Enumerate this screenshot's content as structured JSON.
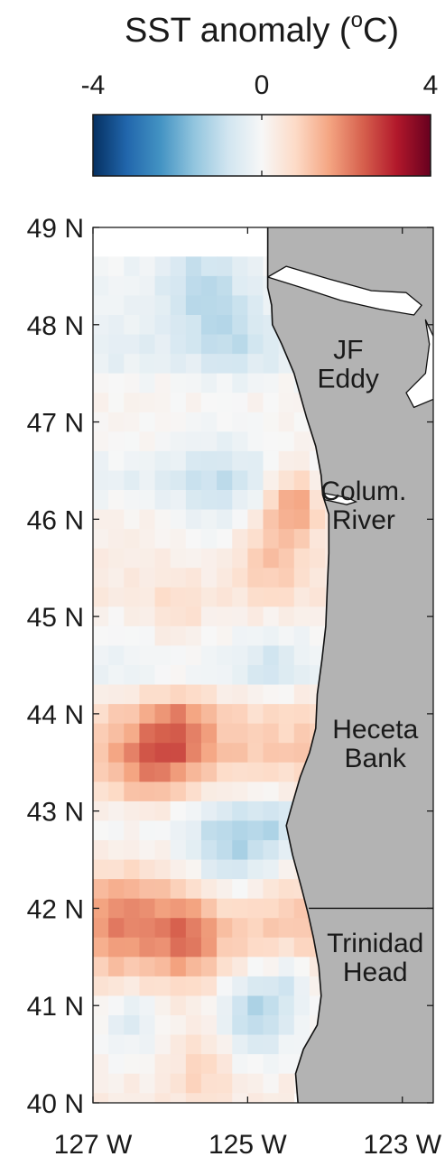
{
  "chart_data": {
    "type": "heatmap",
    "colorbar": {
      "title": "SST anomaly (",
      "title_unit_sup": "o",
      "title_unit_end": "C)",
      "min": -4,
      "max": 4,
      "ticks": [
        "-4",
        "0",
        "4"
      ],
      "colormap": [
        "#053061",
        "#2166ac",
        "#4393c3",
        "#92c5de",
        "#d1e5f0",
        "#f7f7f7",
        "#fddbc7",
        "#f4a582",
        "#d6604d",
        "#b2182b",
        "#67001f"
      ]
    },
    "x_axis": {
      "range": [
        -127,
        -122.6
      ],
      "ticks": [
        -127,
        -125,
        -123
      ],
      "tick_labels": [
        "127 W",
        "125 W",
        "123 W"
      ]
    },
    "y_axis": {
      "range": [
        40,
        49
      ],
      "ticks": [
        40,
        41,
        42,
        43,
        44,
        45,
        46,
        47,
        48,
        49
      ],
      "tick_labels": [
        "40 N",
        "41 N",
        "42 N",
        "43 N",
        "44 N",
        "45 N",
        "46 N",
        "47 N",
        "48 N",
        "49 N"
      ]
    },
    "grid": {
      "lon_start": -127,
      "lat_top": 48.7,
      "cell_lon": 0.2,
      "cell_lat": 0.2,
      "zonal_modes": [
        {
          "lat": 48.5,
          "v": -0.1
        },
        {
          "lat": 48.0,
          "v": -0.25
        },
        {
          "lat": 47.7,
          "v": -0.45
        },
        {
          "lat": 47.3,
          "v": 0.15
        },
        {
          "lat": 46.8,
          "v": 0.05
        },
        {
          "lat": 46.4,
          "v": -0.3
        },
        {
          "lat": 46.0,
          "v": 0.2
        },
        {
          "lat": 45.6,
          "v": 0.3
        },
        {
          "lat": 45.2,
          "v": 0.35
        },
        {
          "lat": 44.7,
          "v": -0.15
        },
        {
          "lat": 44.4,
          "v": -0.25
        },
        {
          "lat": 44.0,
          "v": 0.8
        },
        {
          "lat": 43.6,
          "v": 1.1
        },
        {
          "lat": 43.2,
          "v": 0.6
        },
        {
          "lat": 42.9,
          "v": -0.1
        },
        {
          "lat": 42.5,
          "v": 0.2
        },
        {
          "lat": 42.1,
          "v": 1.0
        },
        {
          "lat": 41.7,
          "v": 1.2
        },
        {
          "lat": 41.3,
          "v": 0.7
        },
        {
          "lat": 40.9,
          "v": 0.1
        },
        {
          "lat": 40.5,
          "v": 0.0
        },
        {
          "lat": 40.1,
          "v": 0.3
        }
      ],
      "anomaly_features": [
        {
          "lon": -124.4,
          "lat": 46.2,
          "r": 0.35,
          "v": 1.6
        },
        {
          "lon": -124.7,
          "lat": 45.6,
          "r": 0.45,
          "v": 0.9
        },
        {
          "lon": -125.6,
          "lat": 48.4,
          "r": 0.5,
          "v": -0.9
        },
        {
          "lon": -125.2,
          "lat": 47.9,
          "r": 0.45,
          "v": -0.6
        },
        {
          "lon": -125.4,
          "lat": 46.3,
          "r": 0.6,
          "v": -0.7
        },
        {
          "lon": -125.9,
          "lat": 43.8,
          "r": 0.45,
          "v": 1.3
        },
        {
          "lon": -126.3,
          "lat": 43.5,
          "r": 0.4,
          "v": 1.0
        },
        {
          "lon": -125.2,
          "lat": 42.6,
          "r": 0.55,
          "v": -1.3
        },
        {
          "lon": -124.6,
          "lat": 42.9,
          "r": 0.35,
          "v": -0.7
        },
        {
          "lon": -125.8,
          "lat": 41.7,
          "r": 0.4,
          "v": 1.2
        },
        {
          "lon": -126.6,
          "lat": 41.9,
          "r": 0.5,
          "v": 0.9
        },
        {
          "lon": -124.9,
          "lat": 41.0,
          "r": 0.45,
          "v": -1.4
        },
        {
          "lon": -124.4,
          "lat": 41.3,
          "r": 0.3,
          "v": -0.9
        },
        {
          "lon": -126.5,
          "lat": 40.9,
          "r": 0.3,
          "v": -0.7
        },
        {
          "lon": -125.6,
          "lat": 40.4,
          "r": 0.4,
          "v": 0.8
        },
        {
          "lon": -124.7,
          "lat": 44.5,
          "r": 0.3,
          "v": -0.6
        },
        {
          "lon": -125.9,
          "lat": 45.0,
          "r": 0.35,
          "v": 0.5
        }
      ]
    },
    "land_color": "#b3b3b3",
    "coastline": [
      [
        -124.74,
        48.38
      ],
      [
        -124.69,
        48.2
      ],
      [
        -124.68,
        48.0
      ],
      [
        -124.56,
        47.8
      ],
      [
        -124.4,
        47.5
      ],
      [
        -124.24,
        47.05
      ],
      [
        -124.12,
        46.75
      ],
      [
        -124.05,
        46.45
      ],
      [
        -124.03,
        46.25
      ],
      [
        -123.95,
        46.05
      ],
      [
        -123.95,
        45.65
      ],
      [
        -123.97,
        45.3
      ],
      [
        -123.99,
        44.9
      ],
      [
        -124.04,
        44.55
      ],
      [
        -124.1,
        44.2
      ],
      [
        -124.12,
        43.85
      ],
      [
        -124.2,
        43.6
      ],
      [
        -124.32,
        43.35
      ],
      [
        -124.43,
        43.05
      ],
      [
        -124.5,
        42.85
      ],
      [
        -124.42,
        42.55
      ],
      [
        -124.3,
        42.2
      ],
      [
        -124.22,
        41.95
      ],
      [
        -124.15,
        41.7
      ],
      [
        -124.08,
        41.4
      ],
      [
        -124.05,
        41.1
      ],
      [
        -124.1,
        40.8
      ],
      [
        -124.28,
        40.55
      ],
      [
        -124.38,
        40.3
      ],
      [
        -124.35,
        40.0
      ]
    ],
    "strait_mask": [
      [
        -124.74,
        48.49
      ],
      [
        -124.3,
        48.38
      ],
      [
        -123.8,
        48.25
      ],
      [
        -123.3,
        48.16
      ],
      [
        -122.85,
        48.1
      ],
      [
        -122.75,
        48.2
      ],
      [
        -122.95,
        48.33
      ],
      [
        -123.4,
        48.35
      ],
      [
        -123.95,
        48.47
      ],
      [
        -124.5,
        48.6
      ]
    ],
    "puget_mask": [
      [
        -122.7,
        48.05
      ],
      [
        -122.55,
        47.8
      ],
      [
        -122.45,
        47.55
      ],
      [
        -122.55,
        47.25
      ],
      [
        -122.85,
        47.15
      ],
      [
        -122.95,
        47.3
      ],
      [
        -122.7,
        47.5
      ],
      [
        -122.65,
        47.8
      ]
    ],
    "state_border": [
      [
        -124.21,
        42.0
      ],
      [
        -122.6,
        42.0
      ]
    ],
    "region_labels": [
      {
        "lines": [
          "JF",
          "Eddy"
        ],
        "lon": -123.7,
        "lat": 47.65
      },
      {
        "lines": [
          "Colum.",
          "River"
        ],
        "lon": -123.5,
        "lat": 46.2
      },
      {
        "lines": [
          "Heceta",
          "Bank"
        ],
        "lon": -123.35,
        "lat": 43.75
      },
      {
        "lines": [
          "Trinidad",
          "Head"
        ],
        "lon": -123.35,
        "lat": 41.55
      }
    ]
  }
}
